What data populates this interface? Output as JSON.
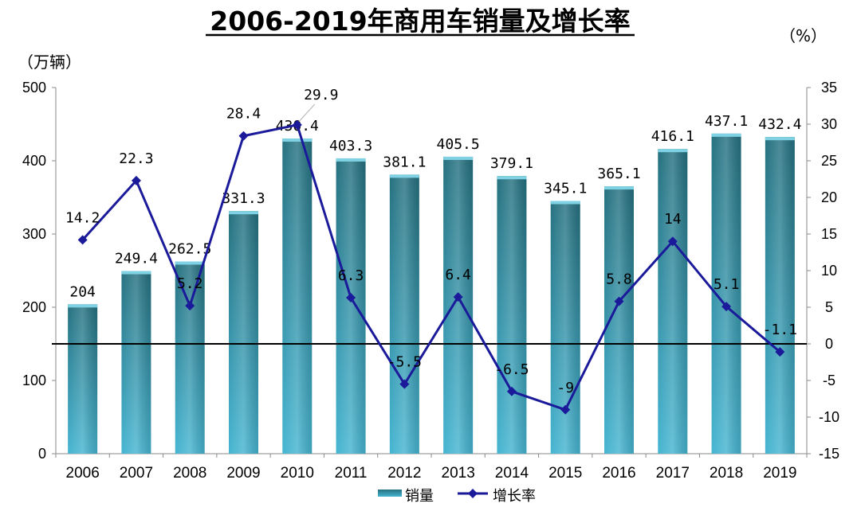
{
  "chart_data": {
    "type": "bar+line",
    "title": "2006-2019年商用车销量及增长率",
    "left_unit": "（万辆）",
    "right_unit": "（%）",
    "categories": [
      "2006",
      "2007",
      "2008",
      "2009",
      "2010",
      "2011",
      "2012",
      "2013",
      "2014",
      "2015",
      "2016",
      "2017",
      "2018",
      "2019"
    ],
    "series": [
      {
        "name": "销量",
        "kind": "bar",
        "axis": "left",
        "values": [
          204,
          249.4,
          262.5,
          331.3,
          430.4,
          403.3,
          381.1,
          405.5,
          379.1,
          345.1,
          365.1,
          416.1,
          437.1,
          432.4
        ],
        "labels": [
          "204",
          "249.4",
          "262.5",
          "331.3",
          "430.4",
          "403.3",
          "381.1",
          "405.5",
          "379.1",
          "345.1",
          "365.1",
          "416.1",
          "437.1",
          "432.4"
        ]
      },
      {
        "name": "增长率",
        "kind": "line",
        "axis": "right",
        "values": [
          14.2,
          22.3,
          5.2,
          28.4,
          29.9,
          6.3,
          -5.5,
          6.4,
          -6.5,
          -9,
          5.8,
          14,
          5.1,
          -1.1
        ],
        "labels": [
          "14.2",
          "22.3",
          "5.2",
          "28.4",
          "29.9",
          "6.3",
          "-5.5",
          "6.4",
          "-6.5",
          "-9",
          "5.8",
          "14",
          "5.1",
          "-1.1"
        ]
      }
    ],
    "y_left": {
      "min": 0,
      "max": 500,
      "ticks": [
        "0",
        "100",
        "200",
        "300",
        "400",
        "500"
      ]
    },
    "y_right": {
      "min": -15,
      "max": 35,
      "ticks": [
        "-15",
        "-10",
        "-5",
        "0",
        "5",
        "10",
        "15",
        "20",
        "25",
        "30",
        "35"
      ]
    },
    "legend": {
      "position": "bottom",
      "bar_label": "销量",
      "line_label": "增长率"
    },
    "colors": {
      "bar_top": "#2a7f92",
      "bar_bottom": "#45b3cf",
      "line": "#1a1a9a",
      "zero_line": "#000000"
    },
    "grid": false
  }
}
